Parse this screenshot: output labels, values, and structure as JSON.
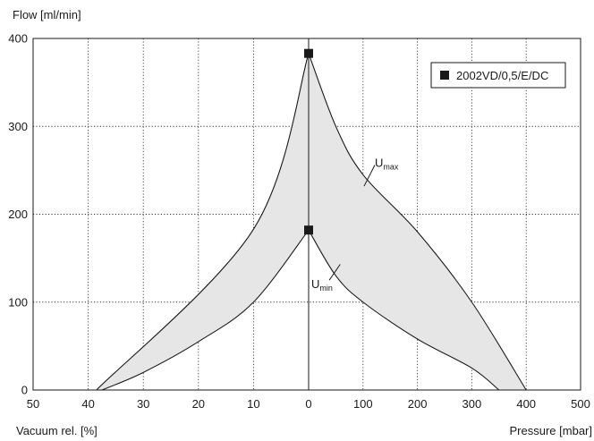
{
  "chart_data": {
    "type": "area",
    "ylabel": "Flow [ml/min]",
    "xlabel_left": "Vacuum rel. [%]",
    "xlabel_right": "Pressure [mbar]",
    "y_ticks": [
      "0",
      "100",
      "200",
      "300",
      "400"
    ],
    "ylim": [
      0,
      400
    ],
    "vacuum_ticks": [
      "50",
      "40",
      "30",
      "20",
      "10"
    ],
    "pressure_ticks": [
      "0",
      "100",
      "200",
      "300",
      "400",
      "500"
    ],
    "vacuum_range": [
      50,
      0
    ],
    "pressure_range": [
      0,
      500
    ],
    "grid": "dotted",
    "legend": {
      "position": "top-right",
      "label": "2002VD/0,5/E/DC",
      "marker": "filled-square"
    },
    "series": [
      {
        "label": "U",
        "label_sub": "max",
        "vacuum_points": [
          [
            38.5,
            0
          ],
          [
            10,
            183
          ],
          [
            0,
            383
          ]
        ],
        "pressure_points": [
          [
            0,
            383
          ],
          [
            50,
            300
          ],
          [
            100,
            245
          ],
          [
            200,
            180
          ],
          [
            300,
            100
          ],
          [
            400,
            0
          ]
        ]
      },
      {
        "label": "U",
        "label_sub": "min",
        "vacuum_points": [
          [
            37.5,
            0
          ],
          [
            30,
            20
          ],
          [
            20,
            55
          ],
          [
            10,
            100
          ],
          [
            0,
            182
          ]
        ],
        "pressure_points": [
          [
            0,
            182
          ],
          [
            50,
            130
          ],
          [
            100,
            100
          ],
          [
            200,
            58
          ],
          [
            300,
            25
          ],
          [
            350,
            0
          ]
        ]
      }
    ],
    "markers": [
      {
        "x_pressure": 0,
        "y": 383
      },
      {
        "x_pressure": 0,
        "y": 182
      }
    ],
    "band_fill": "#e6e6e6",
    "line_color": "#1a1a1a"
  }
}
